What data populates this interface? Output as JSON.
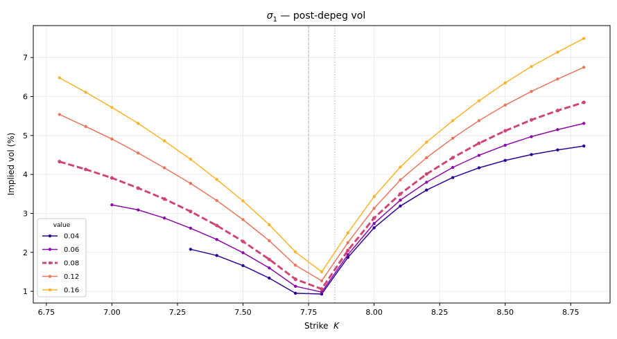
{
  "chart_data": {
    "type": "line",
    "title_main": "σ",
    "title_sub": "1",
    "title_rest": " — post-depeg vol",
    "xlabel_main": "Strike  ",
    "xlabel_italic": "K",
    "ylabel": "Implied vol (%)",
    "xlim": [
      6.7,
      8.9
    ],
    "ylim": [
      0.7,
      7.82
    ],
    "xticks": [
      6.75,
      7.0,
      7.25,
      7.5,
      7.75,
      8.0,
      8.25,
      8.5,
      8.75
    ],
    "xtick_labels": [
      "6.75",
      "7.00",
      "7.25",
      "7.50",
      "7.75",
      "8.00",
      "8.25",
      "8.50",
      "8.75"
    ],
    "yticks": [
      1,
      2,
      3,
      4,
      5,
      6,
      7
    ],
    "ytick_labels": [
      "1",
      "2",
      "3",
      "4",
      "5",
      "6",
      "7"
    ],
    "grid": true,
    "legend_title": "value",
    "legend_position": "lower-left",
    "vlines": [
      {
        "x": 7.75,
        "style": "dashed",
        "color": "#aaaaaa"
      },
      {
        "x": 7.85,
        "style": "dotted",
        "color": "#aaaaaa"
      }
    ],
    "series": [
      {
        "name": "0.04",
        "color": "#2c0594",
        "dashed": false,
        "x": [
          7.3,
          7.4,
          7.5,
          7.6,
          7.7,
          7.8,
          7.9,
          8.0,
          8.1,
          8.2,
          8.3,
          8.4,
          8.5,
          8.6,
          8.7,
          8.8
        ],
        "y": [
          2.08,
          1.92,
          1.66,
          1.34,
          0.95,
          0.93,
          1.87,
          2.63,
          3.19,
          3.6,
          3.92,
          4.17,
          4.36,
          4.51,
          4.63,
          4.73
        ]
      },
      {
        "name": "0.06",
        "color": "#8b0aa5",
        "dashed": false,
        "x": [
          7.0,
          7.1,
          7.2,
          7.3,
          7.4,
          7.5,
          7.6,
          7.7,
          7.8,
          7.9,
          8.0,
          8.1,
          8.2,
          8.3,
          8.4,
          8.5,
          8.6,
          8.7,
          8.8
        ],
        "y": [
          3.22,
          3.09,
          2.88,
          2.62,
          2.33,
          1.99,
          1.6,
          1.13,
          0.98,
          1.94,
          2.74,
          3.34,
          3.8,
          4.18,
          4.49,
          4.75,
          4.97,
          5.15,
          5.31
        ]
      },
      {
        "name": "0.08",
        "color": "#cc4778",
        "dashed": true,
        "x": [
          6.8,
          6.9,
          7.0,
          7.1,
          7.2,
          7.3,
          7.4,
          7.5,
          7.6,
          7.7,
          7.8,
          7.9,
          8.0,
          8.1,
          8.2,
          8.3,
          8.4,
          8.5,
          8.6,
          8.7,
          8.8
        ],
        "y": [
          4.33,
          4.13,
          3.91,
          3.65,
          3.37,
          3.05,
          2.69,
          2.28,
          1.82,
          1.31,
          1.06,
          2.05,
          2.88,
          3.5,
          4.01,
          4.43,
          4.8,
          5.12,
          5.4,
          5.64,
          5.85
        ]
      },
      {
        "name": "0.12",
        "color": "#e8765d",
        "dashed": false,
        "x": [
          6.8,
          6.9,
          7.0,
          7.1,
          7.2,
          7.3,
          7.4,
          7.5,
          7.6,
          7.7,
          7.8,
          7.9,
          8.0,
          8.1,
          8.2,
          8.3,
          8.4,
          8.5,
          8.6,
          8.7,
          8.8
        ],
        "y": [
          5.54,
          5.23,
          4.91,
          4.55,
          4.17,
          3.77,
          3.33,
          2.84,
          2.3,
          1.67,
          1.27,
          2.25,
          3.13,
          3.86,
          4.43,
          4.93,
          5.38,
          5.78,
          6.13,
          6.45,
          6.75
        ]
      },
      {
        "name": "0.16",
        "color": "#fbb32d",
        "dashed": false,
        "x": [
          6.8,
          6.9,
          7.0,
          7.1,
          7.2,
          7.3,
          7.4,
          7.5,
          7.6,
          7.7,
          7.8,
          7.9,
          8.0,
          8.1,
          8.2,
          8.3,
          8.4,
          8.5,
          8.6,
          8.7,
          8.8
        ],
        "y": [
          6.48,
          6.11,
          5.72,
          5.31,
          4.86,
          4.39,
          3.87,
          3.32,
          2.71,
          2.01,
          1.5,
          2.5,
          3.43,
          4.19,
          4.83,
          5.38,
          5.89,
          6.35,
          6.77,
          7.14,
          7.49
        ]
      }
    ]
  }
}
